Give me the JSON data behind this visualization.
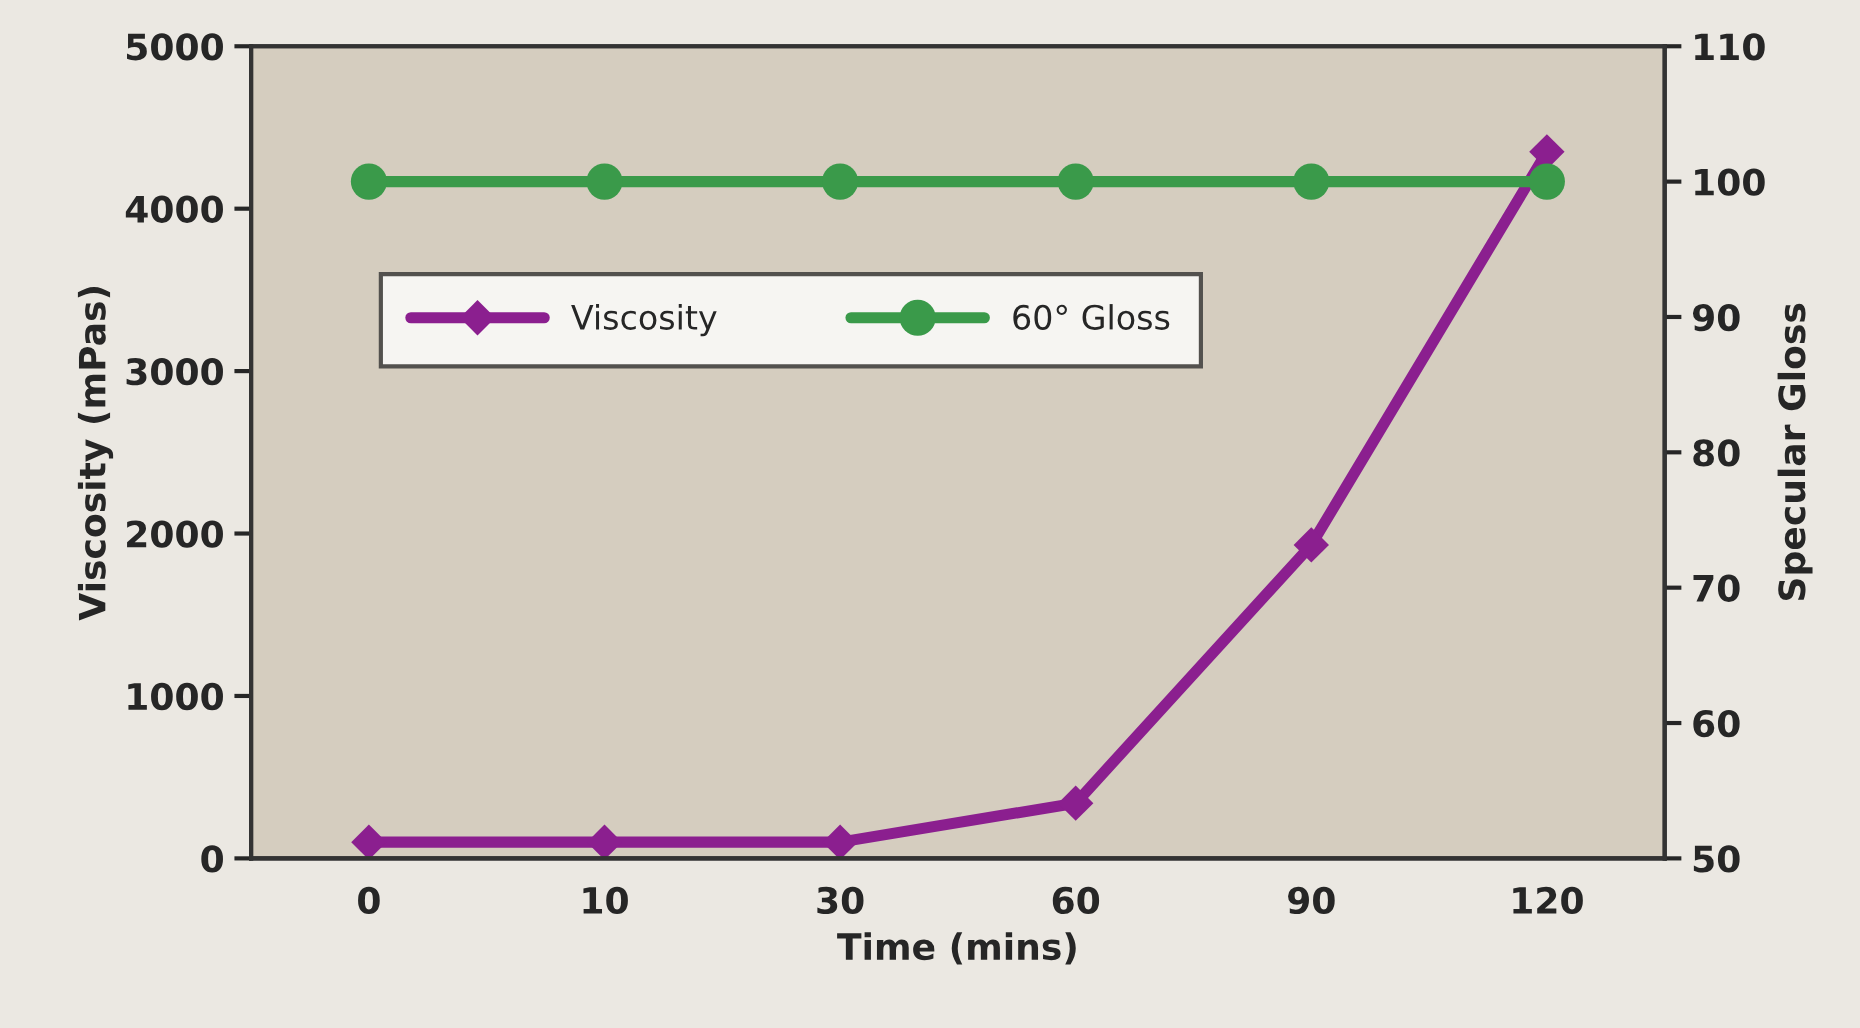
{
  "chart_data": {
    "type": "line",
    "xlabel": "Time (mins)",
    "ylabel": "Viscosity (mPas)",
    "y2label": "Specular Gloss",
    "categories": [
      "0",
      "10",
      "30",
      "60",
      "90",
      "120"
    ],
    "series": [
      {
        "name": "Viscosity",
        "color": "#8b1f8f",
        "values": [
          100,
          100,
          100,
          340,
          1930,
          4350
        ],
        "marker": "diamond"
      },
      {
        "name": "60° Gloss",
        "color": "#3a9a4a",
        "values": [
          100,
          100,
          100,
          100,
          100,
          100
        ],
        "axis": "y2",
        "marker": "circle"
      }
    ],
    "ylim": [
      0,
      5000
    ],
    "yticks": [
      0,
      1000,
      2000,
      3000,
      4000,
      5000
    ],
    "y2lim": [
      50,
      110
    ],
    "y2ticks": [
      50,
      60,
      70,
      80,
      90,
      100,
      110
    ],
    "grid": false,
    "legend": "top left",
    "line_style": "solid"
  }
}
